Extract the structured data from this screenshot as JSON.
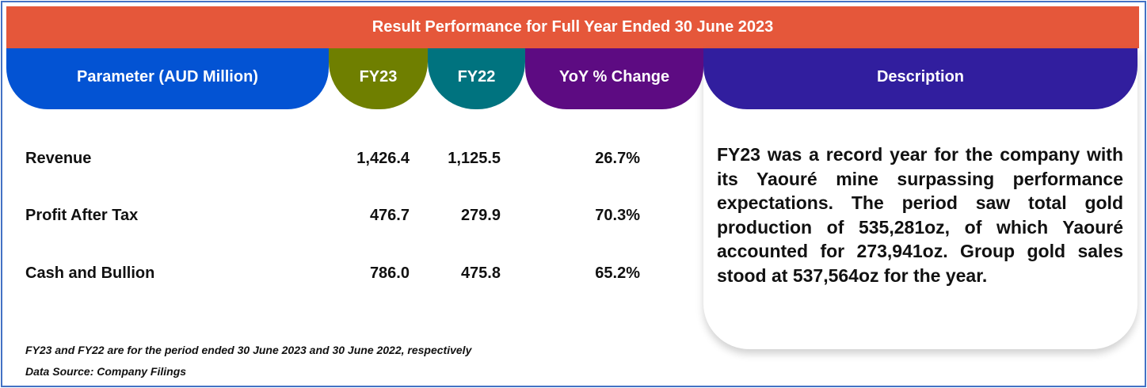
{
  "title": "Result Performance for Full Year Ended 30 June 2023",
  "headers": [
    "Parameter (AUD Million)",
    "FY23",
    "FY22",
    "YoY % Change",
    "Description"
  ],
  "colors": {
    "title": "#e5573a",
    "parameter": "#0353d3",
    "fy23": "#6f7f00",
    "fy22": "#00737f",
    "yoy": "#5d0b82",
    "description": "#311e9e"
  },
  "rows": [
    {
      "parameter": "Revenue",
      "fy23": "1,426.4",
      "fy22": "1,125.5",
      "yoy": "26.7%"
    },
    {
      "parameter": "Profit After Tax",
      "fy23": "476.7",
      "fy22": "279.9",
      "yoy": "70.3%"
    },
    {
      "parameter": "Cash and Bullion",
      "fy23": "786.0",
      "fy22": "475.8",
      "yoy": "65.2%"
    }
  ],
  "description": "FY23 was a record year for the company with its Yaouré mine surpassing performance expectations. The period saw total gold production of 535,281oz, of which Yaouré accounted for 273,941oz. Group gold sales stood at 537,564oz for the year.",
  "notes": [
    "FY23 and FY22 are for the period ended 30 June 2023 and 30 June 2022, respectively",
    "Data Source: Company Filings"
  ]
}
